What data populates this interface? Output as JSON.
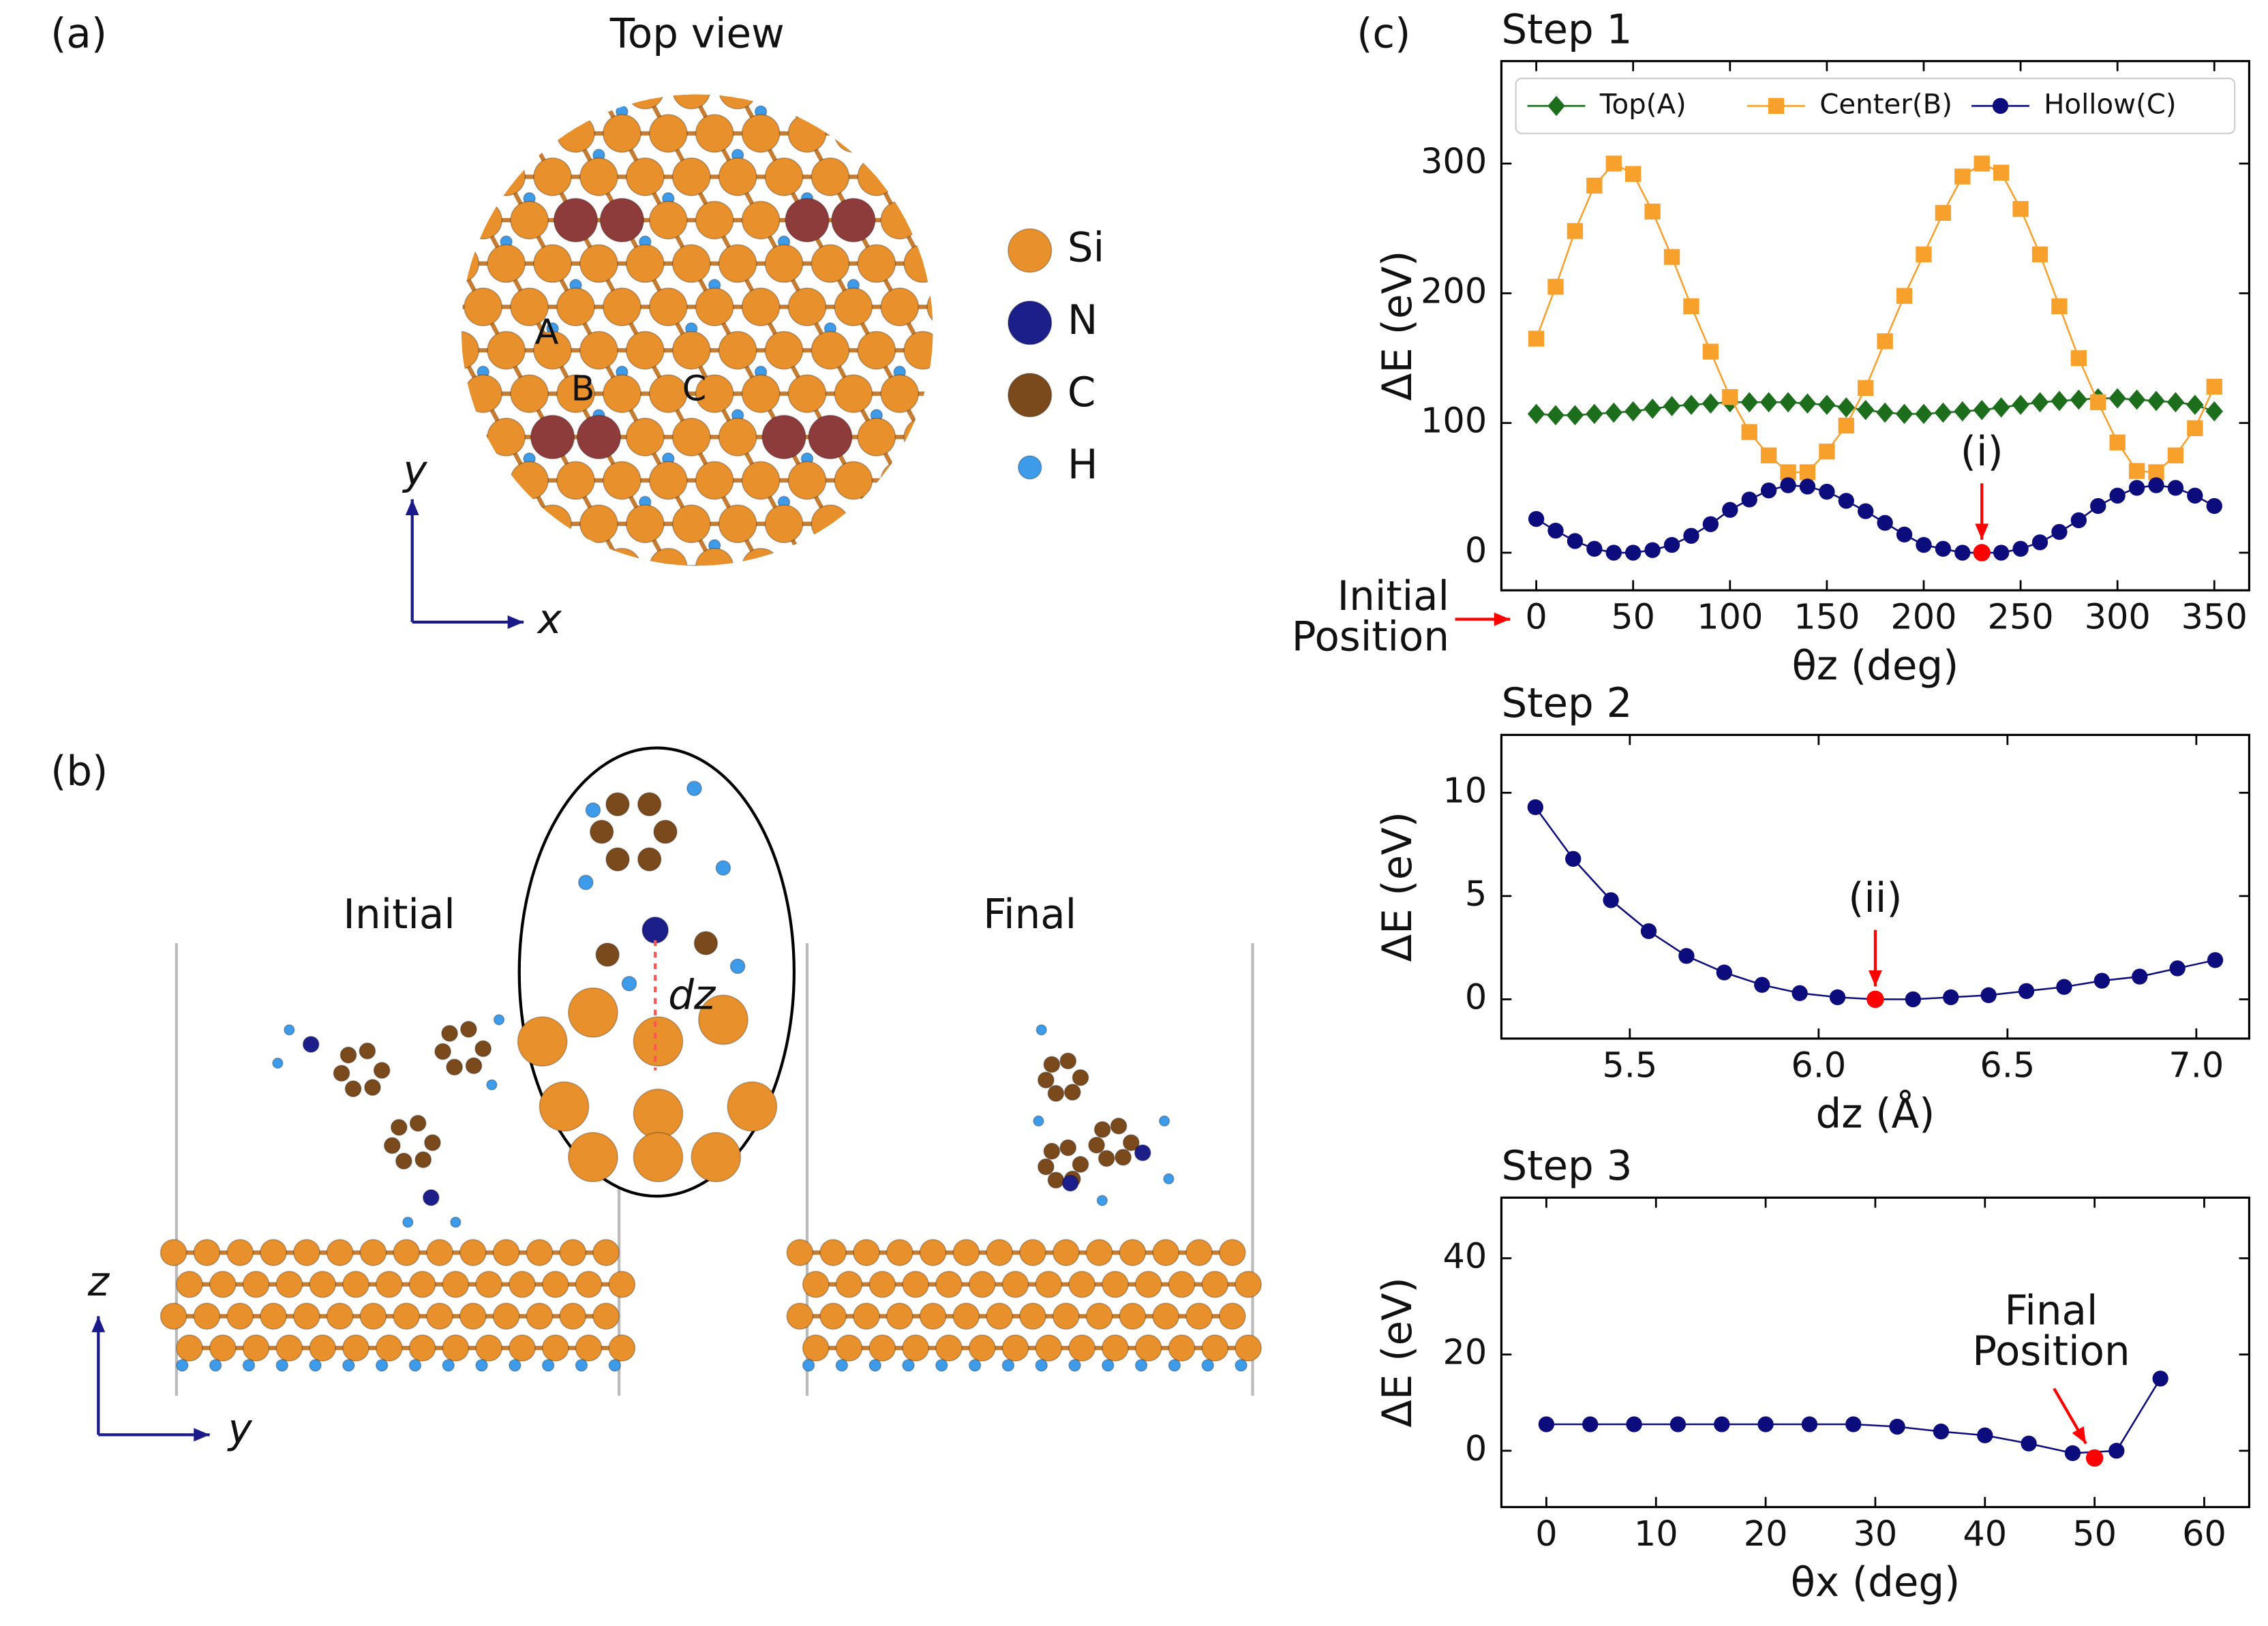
{
  "figure": {
    "panel_labels": [
      "(a)",
      "(b)",
      "(c)"
    ],
    "top_view": "Top view",
    "atoms": [
      {
        "symbol": "Si",
        "color": "#e8912c"
      },
      {
        "symbol": "N",
        "color": "#1c1f8a"
      },
      {
        "symbol": "C",
        "color": "#7a4a1c"
      },
      {
        "symbol": "H",
        "color": "#3d9be9"
      }
    ],
    "sites": [
      "A",
      "B",
      "C"
    ],
    "axes_a": [
      "y",
      "x"
    ],
    "initial": "Initial",
    "final": "Final",
    "dz": "dz",
    "axes_b": [
      "z",
      "y"
    ]
  },
  "chart_data": [
    {
      "type": "line",
      "title": "Step 1",
      "xlabel": "θz (deg)",
      "ylabel": "ΔE (eV)",
      "x": [
        0,
        10,
        20,
        30,
        40,
        50,
        60,
        70,
        80,
        90,
        100,
        110,
        120,
        130,
        140,
        150,
        160,
        170,
        180,
        190,
        200,
        210,
        220,
        230,
        240,
        250,
        260,
        270,
        280,
        290,
        300,
        310,
        320,
        330,
        340,
        350
      ],
      "series": [
        {
          "name": "Top(A)",
          "color": "#1c6e1c",
          "marker": "diamond",
          "values": [
            107,
            106,
            106,
            107,
            108,
            109,
            111,
            113,
            114,
            115,
            116,
            116,
            116,
            116,
            115,
            114,
            112,
            110,
            108,
            107,
            107,
            108,
            109,
            110,
            112,
            114,
            116,
            117,
            118,
            119,
            119,
            118,
            117,
            116,
            114,
            109
          ]
        },
        {
          "name": "Center(B)",
          "color": "#f7a02c",
          "marker": "square",
          "values": [
            165,
            205,
            248,
            283,
            300,
            292,
            263,
            228,
            190,
            155,
            120,
            93,
            75,
            62,
            62,
            78,
            98,
            127,
            163,
            198,
            230,
            262,
            290,
            300,
            293,
            265,
            230,
            190,
            150,
            116,
            85,
            63,
            62,
            75,
            96,
            128
          ]
        },
        {
          "name": "Hollow(C)",
          "color": "#0c0c7c",
          "marker": "circle",
          "values": [
            26,
            17,
            9,
            3,
            0,
            0,
            2,
            6,
            13,
            22,
            33,
            41,
            48,
            52,
            51,
            47,
            40,
            32,
            23,
            14,
            6,
            3,
            0,
            0,
            0,
            3,
            8,
            16,
            25,
            36,
            44,
            50,
            52,
            50,
            44,
            36
          ]
        }
      ],
      "xlim": [
        -18,
        368
      ],
      "ylim": [
        -29,
        379
      ],
      "xticks": [
        0,
        50,
        100,
        150,
        200,
        250,
        300,
        350
      ],
      "yticks": [
        0,
        100,
        200,
        300
      ],
      "legend": "upper center",
      "annotations": [
        {
          "text": [
            "(i)"
          ],
          "x": 230,
          "y": 0,
          "color": "#ff0000",
          "arrow": "down"
        }
      ],
      "side_note": {
        "text": [
          "Initial",
          "Position"
        ],
        "color": "#ff0000"
      }
    },
    {
      "type": "line",
      "title": "Step 2",
      "xlabel": "dz (Å)",
      "ylabel": "ΔE (eV)",
      "x": [
        5.25,
        5.35,
        5.45,
        5.55,
        5.65,
        5.75,
        5.85,
        5.95,
        6.05,
        6.15,
        6.25,
        6.35,
        6.45,
        6.55,
        6.65,
        6.75,
        6.85,
        6.95,
        7.05
      ],
      "series": [
        {
          "color": "#0c0c7c",
          "marker": "circle",
          "values": [
            9.3,
            6.8,
            4.8,
            3.3,
            2.1,
            1.3,
            0.7,
            0.3,
            0.1,
            0,
            0,
            0.1,
            0.2,
            0.4,
            0.6,
            0.9,
            1.1,
            1.5,
            1.9
          ]
        }
      ],
      "xlim": [
        5.16,
        7.14
      ],
      "ylim": [
        -1.9,
        12.8
      ],
      "xticks": [
        5.5,
        {
          "value": 6,
          "label": "6.0"
        },
        6.5,
        {
          "value": 7,
          "label": "7.0"
        }
      ],
      "yticks": [
        0,
        5,
        10
      ],
      "annotations": [
        {
          "text": [
            "(ii)"
          ],
          "x": 6.15,
          "y": 0,
          "color": "#ff0000",
          "arrow": "down"
        }
      ]
    },
    {
      "type": "line",
      "title": "Step 3",
      "xlabel": "θx (deg)",
      "ylabel": "ΔE (eV)",
      "x": [
        0,
        4,
        8,
        12,
        16,
        20,
        24,
        28,
        32,
        36,
        40,
        44,
        48,
        52,
        56
      ],
      "series": [
        {
          "color": "#0c0c7c",
          "marker": "circle",
          "values": [
            5.5,
            5.5,
            5.5,
            5.5,
            5.5,
            5.5,
            5.5,
            5.5,
            5,
            4,
            3.2,
            1.5,
            -0.5,
            0,
            15
          ]
        }
      ],
      "xlim": [
        -4.1,
        64.1
      ],
      "ylim": [
        -11.7,
        52.6
      ],
      "xticks": [
        0,
        10,
        20,
        30,
        40,
        50,
        60
      ],
      "yticks": [
        0,
        20,
        40
      ],
      "annotations": [
        {
          "text": [
            "Final",
            "Position"
          ],
          "x": 50,
          "y": -1.5,
          "color": "#ff0000",
          "arrow": "diagonal"
        }
      ]
    }
  ]
}
